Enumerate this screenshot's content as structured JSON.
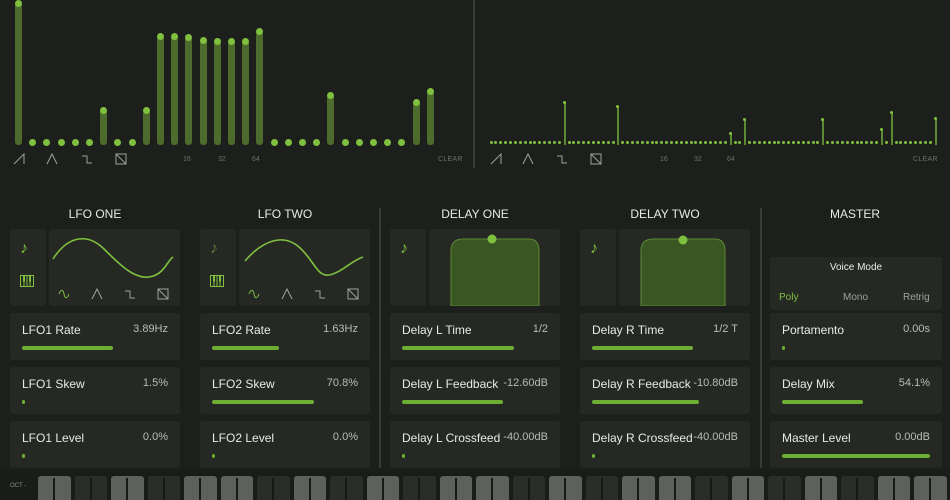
{
  "sequencer_left": {
    "values": [
      1.0,
      0.02,
      0.02,
      0.02,
      0.02,
      0.02,
      0.25,
      0.02,
      0.02,
      0.25,
      0.77,
      0.77,
      0.76,
      0.74,
      0.73,
      0.73,
      0.73,
      0.8,
      0.02,
      0.02,
      0.02,
      0.02,
      0.35,
      0.02,
      0.02,
      0.02,
      0.02,
      0.02,
      0.3,
      0.38
    ],
    "waveform_icons": [
      "saw-wave-icon",
      "triangle-wave-icon",
      "square-wave-icon",
      "random-wave-icon"
    ],
    "step_labels": [
      "16",
      "32",
      "64"
    ],
    "clear_label": "CLEAR"
  },
  "sequencer_right": {
    "values": [
      0.02,
      0.02,
      0.02,
      0.02,
      0.02,
      0.02,
      0.02,
      0.02,
      0.02,
      0.02,
      0.02,
      0.02,
      0.02,
      0.02,
      0.02,
      0.3,
      0.02,
      0.02,
      0.02,
      0.02,
      0.02,
      0.02,
      0.02,
      0.02,
      0.02,
      0.02,
      0.27,
      0.02,
      0.02,
      0.02,
      0.02,
      0.02,
      0.02,
      0.02,
      0.02,
      0.02,
      0.02,
      0.02,
      0.02,
      0.02,
      0.02,
      0.02,
      0.02,
      0.02,
      0.02,
      0.02,
      0.02,
      0.02,
      0.02,
      0.08,
      0.02,
      0.02,
      0.18,
      0.02,
      0.02,
      0.02,
      0.02,
      0.02,
      0.02,
      0.02,
      0.02,
      0.02,
      0.02,
      0.02,
      0.02,
      0.02,
      0.02,
      0.02,
      0.18,
      0.02,
      0.02,
      0.02,
      0.02,
      0.02,
      0.02,
      0.02,
      0.02,
      0.02,
      0.02,
      0.02,
      0.11,
      0.02,
      0.23,
      0.02,
      0.02,
      0.02,
      0.02,
      0.02,
      0.02,
      0.02,
      0.02,
      0.19
    ],
    "waveform_icons": [
      "saw-wave-icon",
      "triangle-wave-icon",
      "square-wave-icon",
      "random-wave-icon"
    ],
    "step_labels": [
      "16",
      "32",
      "64"
    ],
    "clear_label": "CLEAR"
  },
  "sections": {
    "lfo_one": {
      "title": "LFO ONE",
      "params": [
        {
          "name": "LFO1 Rate",
          "value": "3.89Hz",
          "level": 0.62
        },
        {
          "name": "LFO1 Skew",
          "value": "1.5%",
          "level": 0.02
        },
        {
          "name": "LFO1 Level",
          "value": "0.0%",
          "level": 0.0
        }
      ]
    },
    "lfo_two": {
      "title": "LFO TWO",
      "params": [
        {
          "name": "LFO2 Rate",
          "value": "1.63Hz",
          "level": 0.46
        },
        {
          "name": "LFO2 Skew",
          "value": "70.8%",
          "level": 0.7
        },
        {
          "name": "LFO2 Level",
          "value": "0.0%",
          "level": 0.0
        }
      ]
    },
    "delay_one": {
      "title": "DELAY ONE",
      "params": [
        {
          "name": "Delay L Time",
          "value": "1/2",
          "level": 0.77
        },
        {
          "name": "Delay L Feedback",
          "value": "-12.60dB",
          "level": 0.69
        },
        {
          "name": "Delay L Crossfeed",
          "value": "-40.00dB",
          "level": 0.0
        }
      ]
    },
    "delay_two": {
      "title": "DELAY TWO",
      "params": [
        {
          "name": "Delay R Time",
          "value": "1/2 T",
          "level": 0.69
        },
        {
          "name": "Delay R Feedback",
          "value": "-10.80dB",
          "level": 0.73
        },
        {
          "name": "Delay R Crossfeed",
          "value": "-40.00dB",
          "level": 0.0
        }
      ]
    },
    "master": {
      "title": "MASTER",
      "voice_mode_title": "Voice Mode",
      "voice_modes": [
        "Poly",
        "Mono",
        "Retrig"
      ],
      "selected_voice_mode": "Poly",
      "params": [
        {
          "name": "Portamento",
          "value": "0.00s",
          "level": 0.0
        },
        {
          "name": "Delay Mix",
          "value": "54.1%",
          "level": 0.55
        },
        {
          "name": "Master Level",
          "value": "0.00dB",
          "level": 1.0
        }
      ]
    }
  },
  "keyboard": {
    "octave_label": "OCT -"
  },
  "colors": {
    "background": "#1d1f1c",
    "panel": "#262824",
    "accent": "#7fc13f",
    "accent_dim": "#4d6b2d"
  }
}
